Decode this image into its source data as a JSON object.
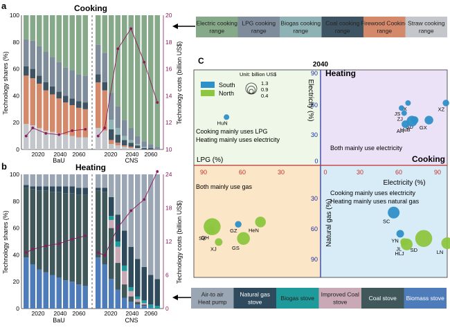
{
  "panel_labels": {
    "a": "a",
    "b": "b",
    "c": "C"
  },
  "cooking_panel": {
    "title": "Cooking",
    "ylabel_left": "Technology shares (%)",
    "ylabel_right": "Technology costs (billion US$)",
    "y_ticks": [
      "0",
      "20",
      "40",
      "60",
      "80",
      "100"
    ],
    "y2_ticks": [
      "10",
      "12",
      "14",
      "16",
      "18",
      "20"
    ],
    "bau_label": "BaU",
    "cns_label": "CNS",
    "x_tick_labels": [
      "2020",
      "2040",
      "2060"
    ]
  },
  "heating_panel": {
    "title": "Heating",
    "ylabel_left": "Technology shares (%)",
    "ylabel_right": "Technology costs (billion US$)",
    "y_ticks": [
      "0",
      "20",
      "40",
      "60",
      "80",
      "100"
    ],
    "y2_ticks": [
      "0",
      "6",
      "12",
      "18",
      "24"
    ],
    "bau_label": "BaU",
    "cns_label": "CNS",
    "x_tick_labels": [
      "2020",
      "2040",
      "2060"
    ]
  },
  "cooking_legend": [
    {
      "label": "Electric cooking range",
      "color": "#86a98a"
    },
    {
      "label": "LPG cooking range",
      "color": "#7e8c9c"
    },
    {
      "label": "Biogas cooking range",
      "color": "#8fb3b5"
    },
    {
      "label": "Coal cooking range",
      "color": "#3f5462"
    },
    {
      "label": "Firewood Cooking range",
      "color": "#d4896b"
    },
    {
      "label": "Straw cooking range",
      "color": "#c3c6ca"
    }
  ],
  "heating_legend": [
    {
      "label": "Air-to air Heat pump",
      "color": "#9aa6b3"
    },
    {
      "label": "Natural gas stove",
      "color": "#2f4a5c"
    },
    {
      "label": "Biogas stove",
      "color": "#1f9a9a"
    },
    {
      "label": "Improved Coal stove",
      "color": "#c9a9b6"
    },
    {
      "label": "Coal stove",
      "color": "#40585a"
    },
    {
      "label": "Biomass stove",
      "color": "#4e7cba"
    }
  ],
  "scatter_panel": {
    "year": "2040",
    "q_heating": "Heating",
    "q_cooking": "Cooking",
    "axis_electricity_top": "Electricity (%)",
    "axis_electricity_right": "Electricity (%)",
    "axis_lpg": "LPG (%)",
    "axis_natural_gas": "Natural gas (%)",
    "legend_unit": "Unit: billion US$",
    "legend_south": "South",
    "legend_north": "North",
    "size_labels": [
      "1.3",
      "0.9",
      "0.4"
    ],
    "quadrant_texts": {
      "top_left_1": "Cooking mainly uses LPG",
      "top_left_2": "Heating mainly uses electricity",
      "top_right": "Both mainly use electricity",
      "bottom_left": "Both mainly use gas",
      "bottom_right_1": "Cooking mainly uses electricity",
      "bottom_right_2": "Heating mainly uses natural gas"
    },
    "x_ticks_left": [
      "90",
      "60",
      "30",
      "0"
    ],
    "x_ticks_right": [
      "30",
      "60",
      "90"
    ],
    "y_ticks_top": [
      "90",
      "60",
      "30"
    ],
    "y_ticks_bottom": [
      "30",
      "60",
      "90"
    ]
  },
  "chart_data": [
    {
      "type": "bar",
      "panel": "a",
      "title": "Cooking",
      "ylabel": "Technology shares (%)",
      "ylim": [
        0,
        100
      ],
      "y2label": "Technology costs (billion US$)",
      "y2lim": [
        10,
        20
      ],
      "groups": [
        {
          "name": "BaU",
          "years": [
            2015,
            2020,
            2025,
            2030,
            2035,
            2040,
            2045,
            2050,
            2055,
            2060
          ]
        },
        {
          "name": "CNS",
          "years": [
            2015,
            2020,
            2025,
            2030,
            2035,
            2040,
            2045,
            2050,
            2055,
            2060
          ]
        }
      ],
      "series": [
        {
          "name": "Straw cooking range",
          "bau": [
            19,
            18,
            16,
            14,
            13,
            12,
            11,
            10,
            9,
            9
          ],
          "cns": [
            16,
            14,
            4,
            3,
            2,
            1,
            1,
            0,
            0,
            0
          ]
        },
        {
          "name": "Firewood Cooking range",
          "bau": [
            36,
            35,
            33,
            30,
            28,
            26,
            24,
            23,
            22,
            21
          ],
          "cns": [
            34,
            30,
            3,
            2,
            1,
            1,
            0,
            0,
            0,
            0
          ]
        },
        {
          "name": "Coal cooking range",
          "bau": [
            7,
            7,
            6,
            6,
            6,
            5,
            5,
            5,
            5,
            5
          ],
          "cns": [
            6,
            6,
            8,
            6,
            4,
            3,
            2,
            1,
            1,
            0
          ]
        },
        {
          "name": "Biogas cooking range",
          "bau": [
            0,
            0,
            0,
            0,
            0,
            0,
            0,
            0,
            0,
            0
          ],
          "cns": [
            0,
            0,
            7,
            5,
            3,
            2,
            1,
            1,
            0,
            0
          ]
        },
        {
          "name": "LPG cooking range",
          "bau": [
            20,
            21,
            22,
            23,
            22,
            22,
            21,
            21,
            20,
            20
          ],
          "cns": [
            22,
            22,
            20,
            16,
            12,
            9,
            6,
            4,
            3,
            2
          ]
        },
        {
          "name": "Electric cooking range",
          "bau": [
            18,
            19,
            23,
            27,
            31,
            35,
            39,
            41,
            44,
            45
          ],
          "cns": [
            22,
            28,
            58,
            68,
            78,
            84,
            90,
            94,
            96,
            98
          ]
        }
      ],
      "cost_series": {
        "name": "Technology costs",
        "bau": [
          11.0,
          11.6,
          11.2,
          11.1,
          11.4,
          11.5
        ],
        "cns": [
          11.0,
          11.6,
          17.5,
          19.0,
          16.5,
          13.5
        ]
      }
    },
    {
      "type": "bar",
      "panel": "b",
      "title": "Heating",
      "ylabel": "Technology shares (%)",
      "ylim": [
        0,
        100
      ],
      "y2label": "Technology costs (billion US$)",
      "y2lim": [
        0,
        24
      ],
      "groups": [
        {
          "name": "BaU",
          "years": [
            2015,
            2020,
            2025,
            2030,
            2035,
            2040,
            2045,
            2050,
            2055,
            2060
          ]
        },
        {
          "name": "CNS",
          "years": [
            2015,
            2020,
            2025,
            2030,
            2035,
            2040,
            2045,
            2050,
            2055,
            2060
          ]
        }
      ],
      "series": [
        {
          "name": "Biomass stove",
          "bau": [
            38,
            33,
            29,
            27,
            25,
            23,
            21,
            20,
            18,
            17
          ],
          "cns": [
            38,
            33,
            22,
            14,
            8,
            5,
            3,
            2,
            1,
            0
          ]
        },
        {
          "name": "Coal stove",
          "bau": [
            52,
            56,
            59,
            61,
            62,
            64,
            65,
            66,
            67,
            68
          ],
          "cns": [
            50,
            54,
            38,
            20,
            10,
            4,
            2,
            1,
            0,
            0
          ]
        },
        {
          "name": "Improved Coal stove",
          "bau": [
            0,
            0,
            0,
            0,
            0,
            0,
            0,
            0,
            0,
            0
          ],
          "cns": [
            0,
            0,
            6,
            12,
            10,
            4,
            2,
            1,
            0,
            0
          ]
        },
        {
          "name": "Biogas stove",
          "bau": [
            0,
            0,
            0,
            0,
            0,
            0,
            0,
            0,
            0,
            0
          ],
          "cns": [
            0,
            0,
            3,
            4,
            4,
            3,
            2,
            2,
            2,
            2
          ]
        },
        {
          "name": "Natural gas stove",
          "bau": [
            2,
            2,
            3,
            3,
            4,
            4,
            5,
            5,
            5,
            5
          ],
          "cns": [
            2,
            3,
            14,
            20,
            26,
            30,
            28,
            25,
            22,
            20
          ]
        },
        {
          "name": "Air-to air Heat pump",
          "bau": [
            8,
            9,
            9,
            9,
            9,
            9,
            9,
            9,
            10,
            10
          ],
          "cns": [
            10,
            10,
            17,
            30,
            42,
            54,
            63,
            69,
            75,
            78
          ]
        }
      ],
      "cost_series": {
        "name": "Technology costs",
        "bau": [
          10.0,
          10.6,
          11.2,
          11.6,
          12.4,
          13.0
        ],
        "cns": [
          10.0,
          9.5,
          14.5,
          17.5,
          19.5,
          24.5
        ]
      }
    },
    {
      "type": "scatter",
      "panel": "C",
      "title": "2040",
      "series": [
        {
          "name": "South",
          "color": "#2f8fc8",
          "points": [
            {
              "label": "HuN",
              "lpg_cook": 72,
              "elec_heat": 48,
              "cost": 0.2
            },
            {
              "label": "JX",
              "elec_cook": 67,
              "elec_heat": 62,
              "cost": 0.2
            },
            {
              "label": "JS",
              "elec_cook": 62,
              "elec_heat": 57,
              "cost": 0.2
            },
            {
              "label": "ZJ",
              "elec_cook": 64,
              "elec_heat": 52,
              "cost": 0.2
            },
            {
              "label": "XZ",
              "elec_cook": 96,
              "elec_heat": 62,
              "cost": 0.3
            },
            {
              "label": "GD",
              "elec_cook": 72,
              "elec_heat": 45,
              "cost": 0.4
            },
            {
              "label": "GX",
              "elec_cook": 83,
              "elec_heat": 45,
              "cost": 0.5
            },
            {
              "label": "HuB",
              "elec_cook": 70,
              "elec_heat": 44,
              "cost": 0.7
            },
            {
              "label": "AH",
              "elec_cook": 65,
              "elec_heat": 41,
              "cost": 0.4
            },
            {
              "label": "GZ",
              "lpg_cook": 63,
              "gas_heat": 50,
              "cost": 0.3
            },
            {
              "label": "SC",
              "elec_cook": 56,
              "gas_heat": 40,
              "cost": 0.8
            },
            {
              "label": "YN",
              "elec_cook": 61,
              "gas_heat": 58,
              "cost": 0.4
            }
          ]
        },
        {
          "name": "North",
          "color": "#8dc63f",
          "points": [
            {
              "label": "HeN",
              "lpg_cook": 46,
              "gas_heat": 48,
              "cost": 0.7
            },
            {
              "label": "SX",
              "lpg_cook": 83,
              "gas_heat": 52,
              "cost": 1.3
            },
            {
              "label": "QH",
              "lpg_cook": 84,
              "gas_heat": 55,
              "cost": 0.5
            },
            {
              "label": "GS",
              "lpg_cook": 59,
              "gas_heat": 62,
              "cost": 0.9
            },
            {
              "label": "XJ",
              "lpg_cook": 78,
              "gas_heat": 65,
              "cost": 0.4
            },
            {
              "label": "SD",
              "elec_cook": 79,
              "gas_heat": 62,
              "cost": 1.3
            },
            {
              "label": "HLJ",
              "elec_cook": 66,
              "gas_heat": 67,
              "cost": 0.8
            },
            {
              "label": "JL",
              "elec_cook": 64,
              "gas_heat": 65,
              "cost": 0.4
            },
            {
              "label": "LN",
              "elec_cook": 97,
              "gas_heat": 66,
              "cost": 0.8
            }
          ]
        }
      ]
    }
  ]
}
